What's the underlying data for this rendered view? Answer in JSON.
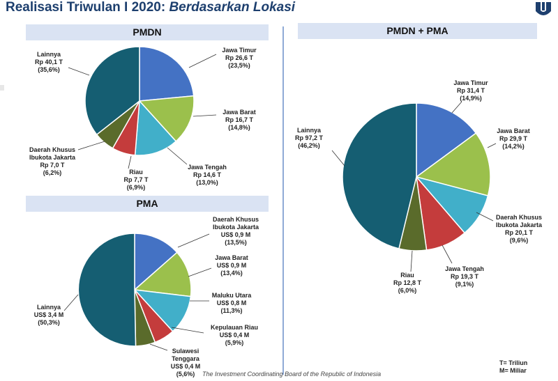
{
  "header": {
    "title_main": "Realisasi Triwulan I 2020: ",
    "title_italic": "Berdasarkan Lokasi"
  },
  "panels": {
    "pmdn": "PMDN",
    "pma": "PMA",
    "combined": "PMDN + PMA"
  },
  "colors": {
    "blue": "#4472c4",
    "green": "#9bc04c",
    "cyan": "#41afc9",
    "red": "#c43c3c",
    "olive": "#5a6b2b",
    "teal": "#155e72",
    "header_bg": "#dae3f3"
  },
  "chart_data": [
    {
      "type": "pie",
      "title": "PMDN",
      "unit": "Rp T",
      "slices": [
        {
          "name": "Jawa Timur",
          "value": 26.6,
          "percent": 23.5,
          "lines": [
            "Jawa Timur",
            "Rp 26,6 T",
            "(23,5%)"
          ],
          "color": "blue"
        },
        {
          "name": "Jawa Barat",
          "value": 16.7,
          "percent": 14.8,
          "lines": [
            "Jawa Barat",
            "Rp 16,7 T",
            "(14,8%)"
          ],
          "color": "green"
        },
        {
          "name": "Jawa Tengah",
          "value": 14.6,
          "percent": 13.0,
          "lines": [
            "Jawa Tengah",
            "Rp 14,6 T",
            "(13,0%)"
          ],
          "color": "cyan"
        },
        {
          "name": "Riau",
          "value": 7.7,
          "percent": 6.9,
          "lines": [
            "Riau",
            "Rp 7,7 T",
            "(6,9%)"
          ],
          "color": "red"
        },
        {
          "name": "Daerah Khusus Ibukota Jakarta",
          "value": 7.0,
          "percent": 6.2,
          "lines": [
            "Daerah Khusus",
            "Ibukota Jakarta",
            "Rp 7,0 T",
            "(6,2%)"
          ],
          "color": "olive"
        },
        {
          "name": "Lainnya",
          "value": 40.1,
          "percent": 35.6,
          "lines": [
            "Lainnya",
            "Rp 40,1 T",
            "(35,6%)"
          ],
          "color": "teal"
        }
      ]
    },
    {
      "type": "pie",
      "title": "PMA",
      "unit": "US$ M",
      "slices": [
        {
          "name": "Daerah Khusus Ibukota Jakarta",
          "value": 0.9,
          "percent": 13.5,
          "lines": [
            "Daerah Khusus",
            "Ibukota Jakarta",
            "US$ 0,9 M",
            "(13,5%)"
          ],
          "color": "blue"
        },
        {
          "name": "Jawa Barat",
          "value": 0.9,
          "percent": 13.4,
          "lines": [
            "Jawa Barat",
            "US$ 0,9 M",
            "(13,4%)"
          ],
          "color": "green"
        },
        {
          "name": "Maluku Utara",
          "value": 0.8,
          "percent": 11.3,
          "lines": [
            "Maluku Utara",
            "US$ 0,8 M",
            "(11,3%)"
          ],
          "color": "cyan"
        },
        {
          "name": "Kepulauan Riau",
          "value": 0.4,
          "percent": 5.9,
          "lines": [
            "Kepulauan Riau",
            "US$ 0,4 M",
            "(5,9%)"
          ],
          "color": "red"
        },
        {
          "name": "Sulawesi Tenggara",
          "value": 0.4,
          "percent": 5.6,
          "lines": [
            "Sulawesi",
            "Tenggara",
            "US$ 0,4 M",
            "(5,6%)"
          ],
          "color": "olive"
        },
        {
          "name": "Lainnya",
          "value": 3.4,
          "percent": 50.3,
          "lines": [
            "Lainnya",
            "US$ 3,4 M",
            "(50,3%)"
          ],
          "color": "teal"
        }
      ]
    },
    {
      "type": "pie",
      "title": "PMDN + PMA",
      "unit": "Rp T",
      "slices": [
        {
          "name": "Jawa Timur",
          "value": 31.4,
          "percent": 14.9,
          "lines": [
            "Jawa Timur",
            "Rp 31,4 T",
            "(14,9%)"
          ],
          "color": "blue"
        },
        {
          "name": "Jawa Barat",
          "value": 29.9,
          "percent": 14.2,
          "lines": [
            "Jawa Barat",
            "Rp 29,9 T",
            "(14,2%)"
          ],
          "color": "green"
        },
        {
          "name": "Daerah Khusus Ibukota Jakarta",
          "value": 20.1,
          "percent": 9.6,
          "lines": [
            "Daerah Khusus",
            "Ibukota Jakarta",
            "Rp 20,1 T",
            "(9,6%)"
          ],
          "color": "cyan"
        },
        {
          "name": "Jawa Tengah",
          "value": 19.3,
          "percent": 9.1,
          "lines": [
            "Jawa Tengah",
            "Rp 19,3 T",
            "(9,1%)"
          ],
          "color": "red"
        },
        {
          "name": "Riau",
          "value": 12.8,
          "percent": 6.0,
          "lines": [
            "Riau",
            "Rp 12,8 T",
            "(6,0%)"
          ],
          "color": "olive"
        },
        {
          "name": "Lainnya",
          "value": 97.2,
          "percent": 46.2,
          "lines": [
            "Lainnya",
            "Rp 97,2 T",
            "(46,2%)"
          ],
          "color": "teal"
        }
      ]
    }
  ],
  "notes": {
    "triliun": "T= Triliun",
    "miliar": "M= Miliar"
  },
  "footer": "The Investment Coordinating Board of the Republic of Indonesia"
}
